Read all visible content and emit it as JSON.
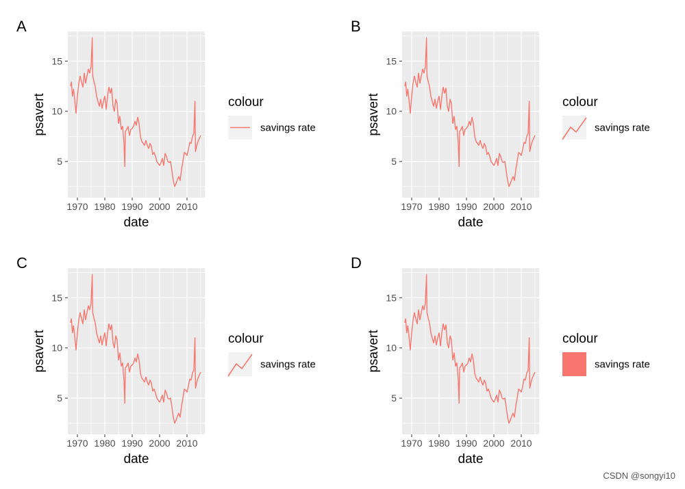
{
  "watermark": "CSDN @songyi10",
  "chart_data": [
    {
      "panel_label": "A",
      "type": "line",
      "xlabel": "date",
      "ylabel": "psavert",
      "xticks": [
        "1970",
        "1980",
        "1990",
        "2000",
        "2010"
      ],
      "yticks": [
        5,
        10,
        15
      ],
      "xlim": [
        1966.5,
        2016.5
      ],
      "ylim": [
        1.4,
        17.95
      ],
      "legend": {
        "title": "colour",
        "label": "savings rate",
        "key": "line",
        "position": "right"
      },
      "series": [
        {
          "name": "savings rate",
          "color": "#F8766D"
        }
      ]
    },
    {
      "panel_label": "B",
      "type": "line",
      "xlabel": "date",
      "ylabel": "psavert",
      "xticks": [
        "1970",
        "1980",
        "1990",
        "2000",
        "2010"
      ],
      "yticks": [
        5,
        10,
        15
      ],
      "xlim": [
        1966.5,
        2016.5
      ],
      "ylim": [
        1.4,
        17.95
      ],
      "legend": {
        "title": "colour",
        "label": "savings rate",
        "key": "zigzag",
        "position": "right"
      },
      "series": [
        {
          "name": "savings rate",
          "color": "#F8766D"
        }
      ]
    },
    {
      "panel_label": "C",
      "type": "line",
      "xlabel": "date",
      "ylabel": "psavert",
      "xticks": [
        "1970",
        "1980",
        "1990",
        "2000",
        "2010"
      ],
      "yticks": [
        5,
        10,
        15
      ],
      "xlim": [
        1966.5,
        2016.5
      ],
      "ylim": [
        1.4,
        17.95
      ],
      "legend": {
        "title": "colour",
        "label": "savings rate",
        "key": "zigzag",
        "position": "right"
      },
      "series": [
        {
          "name": "savings rate",
          "color": "#F8766D"
        }
      ]
    },
    {
      "panel_label": "D",
      "type": "line",
      "xlabel": "date",
      "ylabel": "psavert",
      "xticks": [
        "1970",
        "1980",
        "1990",
        "2000",
        "2010"
      ],
      "yticks": [
        5,
        10,
        15
      ],
      "xlim": [
        1966.5,
        2016.5
      ],
      "ylim": [
        1.4,
        17.95
      ],
      "legend": {
        "title": "colour",
        "label": "savings rate",
        "key": "rect",
        "position": "right"
      },
      "series": [
        {
          "name": "savings rate",
          "color": "#F8766D"
        }
      ]
    }
  ],
  "series_data": {
    "x": [
      1967.5,
      1967.8,
      1968.2,
      1968.6,
      1969.0,
      1969.5,
      1970.0,
      1970.5,
      1971.0,
      1971.5,
      1972.0,
      1972.5,
      1973.0,
      1973.5,
      1974.0,
      1974.5,
      1975.0,
      1975.4,
      1975.6,
      1976.0,
      1976.5,
      1977.0,
      1977.5,
      1978.0,
      1978.5,
      1979.0,
      1979.5,
      1980.0,
      1980.5,
      1981.0,
      1981.5,
      1982.0,
      1982.5,
      1983.0,
      1983.5,
      1984.0,
      1984.5,
      1985.0,
      1985.5,
      1986.0,
      1986.5,
      1987.0,
      1987.3,
      1987.5,
      1988.0,
      1988.5,
      1989.0,
      1989.5,
      1990.0,
      1990.5,
      1991.0,
      1991.5,
      1992.0,
      1992.5,
      1993.0,
      1993.5,
      1994.0,
      1994.5,
      1995.0,
      1995.5,
      1996.0,
      1996.5,
      1997.0,
      1997.5,
      1998.0,
      1998.5,
      1999.0,
      1999.5,
      2000.0,
      2000.5,
      2001.0,
      2001.5,
      2002.0,
      2002.5,
      2003.0,
      2003.5,
      2004.0,
      2004.5,
      2005.0,
      2005.5,
      2006.0,
      2006.5,
      2007.0,
      2007.5,
      2008.0,
      2008.5,
      2009.0,
      2009.5,
      2010.0,
      2010.5,
      2011.0,
      2011.5,
      2012.0,
      2012.5,
      2012.9,
      2013.1,
      2013.5,
      2014.0,
      2014.5,
      2015.0
    ],
    "y": [
      12.5,
      12.9,
      11.5,
      12.2,
      11.2,
      9.8,
      11.5,
      12.8,
      13.5,
      12.9,
      12.4,
      13.8,
      12.8,
      13.5,
      14.2,
      13.8,
      14.5,
      17.3,
      13.5,
      13.0,
      12.5,
      11.5,
      11.0,
      10.5,
      11.2,
      10.3,
      11.0,
      11.5,
      10.2,
      11.5,
      12.4,
      11.8,
      12.3,
      10.5,
      10.0,
      11.2,
      10.8,
      8.8,
      9.5,
      8.2,
      8.5,
      6.8,
      4.5,
      8.0,
      8.2,
      8.5,
      7.6,
      8.2,
      8.3,
      8.5,
      9.0,
      8.6,
      9.4,
      8.8,
      7.5,
      7.0,
      6.8,
      6.6,
      7.1,
      6.6,
      6.3,
      6.8,
      6.5,
      5.7,
      5.9,
      5.5,
      5.0,
      4.8,
      4.6,
      4.9,
      5.3,
      4.6,
      5.8,
      5.5,
      5.0,
      4.9,
      5.0,
      4.1,
      3.1,
      2.5,
      2.8,
      3.2,
      3.5,
      3.1,
      4.2,
      5.0,
      5.9,
      5.8,
      5.6,
      6.2,
      6.9,
      6.8,
      7.5,
      7.8,
      11.0,
      6.0,
      6.5,
      7.0,
      7.3,
      7.6
    ]
  }
}
